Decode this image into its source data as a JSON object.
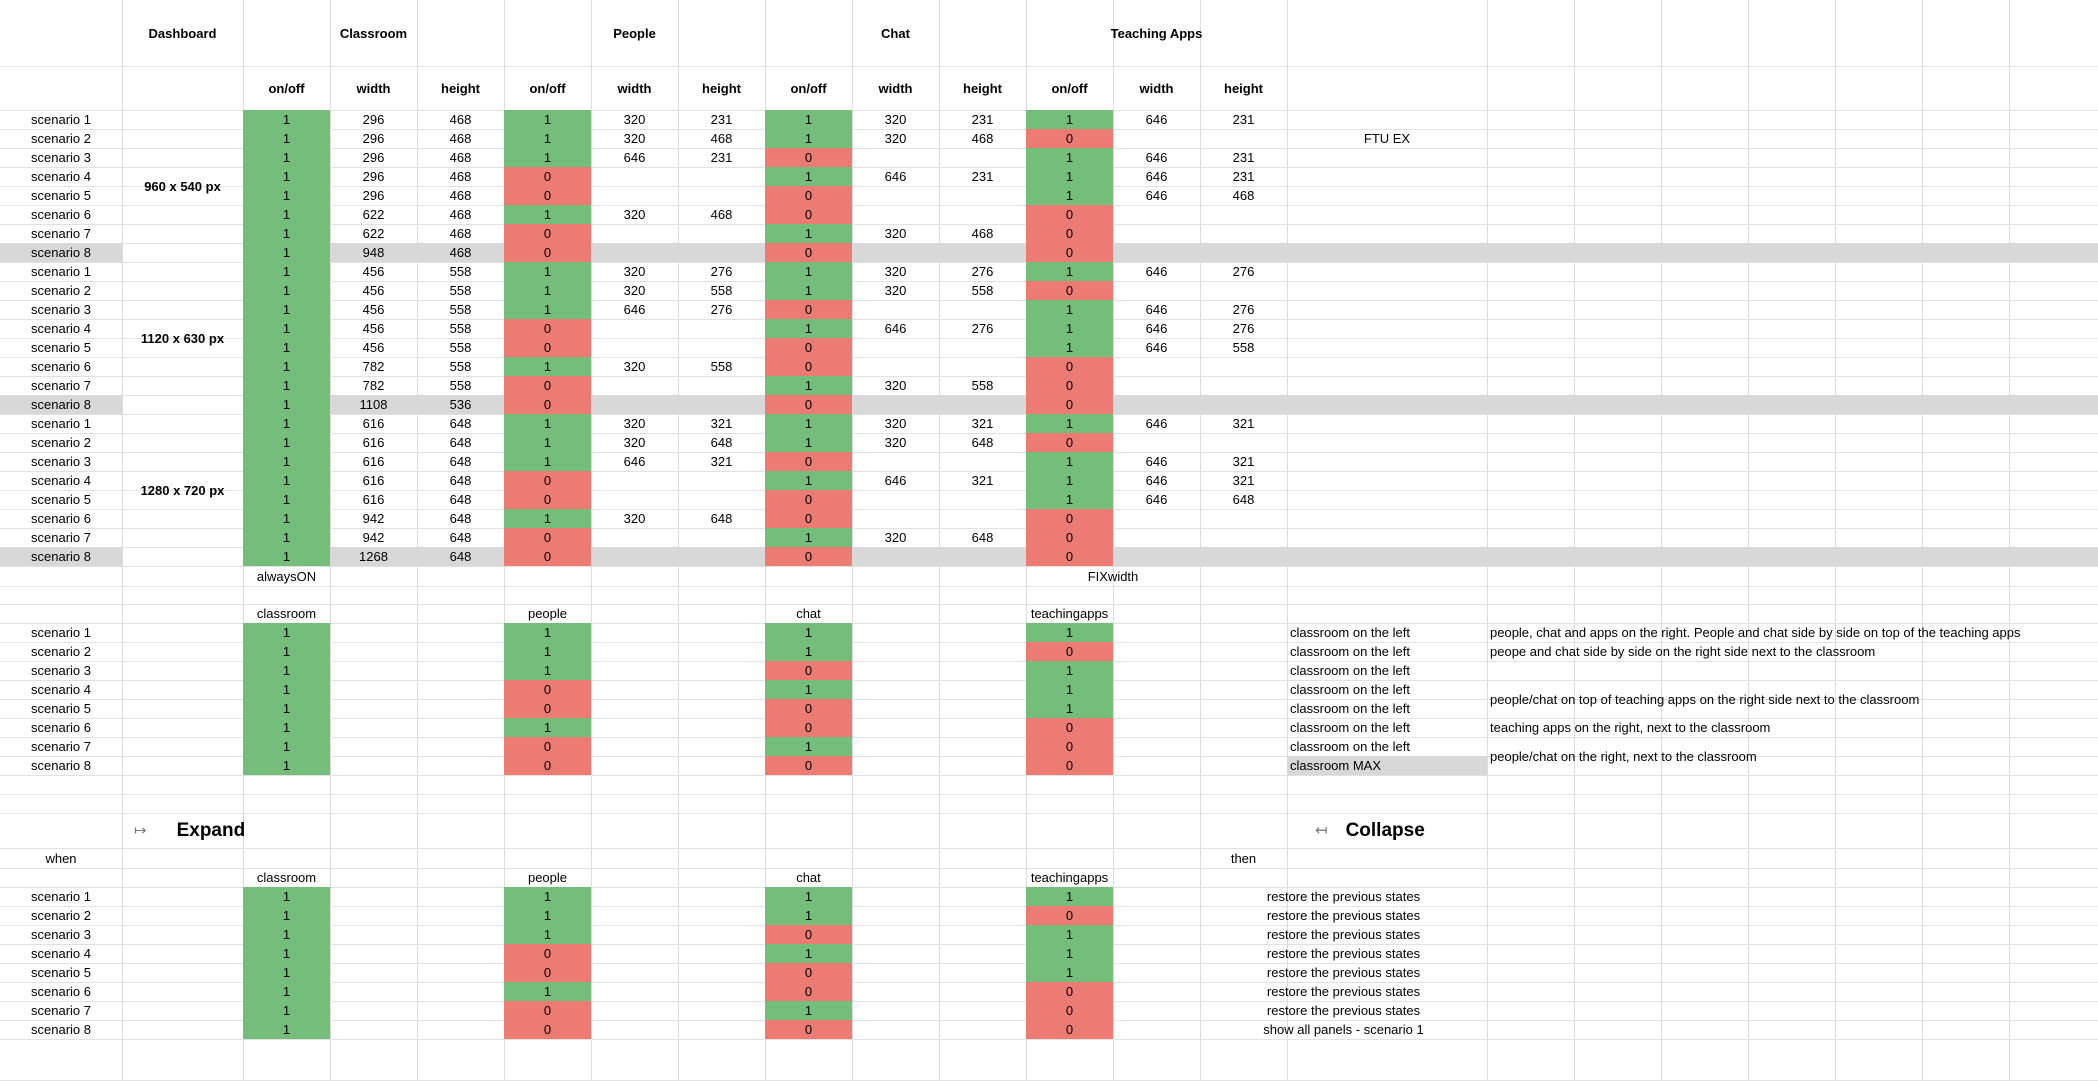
{
  "headers": {
    "dashboard": "Dashboard",
    "classroom": "Classroom",
    "people": "People",
    "chat": "Chat",
    "teaching_apps": "Teaching Apps",
    "onoff": "on/off",
    "width": "width",
    "height": "height"
  },
  "ftu_label": "FTU EX",
  "sizes": [
    {
      "label": "960 x 540 px",
      "rows": [
        {
          "name": "scenario 1",
          "cls": "1",
          "cw": "296",
          "ch": "468",
          "p": "1",
          "pw": "320",
          "ph": "231",
          "c": "1",
          "chw": "320",
          "chh": "231",
          "t": "1",
          "tw": "646",
          "th": "231"
        },
        {
          "name": "scenario 2",
          "cls": "1",
          "cw": "296",
          "ch": "468",
          "p": "1",
          "pw": "320",
          "ph": "468",
          "c": "1",
          "chw": "320",
          "chh": "468",
          "t": "0",
          "tw": "",
          "th": ""
        },
        {
          "name": "scenario 3",
          "cls": "1",
          "cw": "296",
          "ch": "468",
          "p": "1",
          "pw": "646",
          "ph": "231",
          "c": "0",
          "chw": "",
          "chh": "",
          "t": "1",
          "tw": "646",
          "th": "231"
        },
        {
          "name": "scenario 4",
          "cls": "1",
          "cw": "296",
          "ch": "468",
          "p": "0",
          "pw": "",
          "ph": "",
          "c": "1",
          "chw": "646",
          "chh": "231",
          "t": "1",
          "tw": "646",
          "th": "231"
        },
        {
          "name": "scenario 5",
          "cls": "1",
          "cw": "296",
          "ch": "468",
          "p": "0",
          "pw": "",
          "ph": "",
          "c": "0",
          "chw": "",
          "chh": "",
          "t": "1",
          "tw": "646",
          "th": "468"
        },
        {
          "name": "scenario 6",
          "cls": "1",
          "cw": "622",
          "ch": "468",
          "p": "1",
          "pw": "320",
          "ph": "468",
          "c": "0",
          "chw": "",
          "chh": "",
          "t": "0",
          "tw": "",
          "th": ""
        },
        {
          "name": "scenario 7",
          "cls": "1",
          "cw": "622",
          "ch": "468",
          "p": "0",
          "pw": "",
          "ph": "",
          "c": "1",
          "chw": "320",
          "chh": "468",
          "t": "0",
          "tw": "",
          "th": ""
        },
        {
          "name": "scenario 8",
          "cls": "1",
          "cw": "948",
          "ch": "468",
          "p": "0",
          "pw": "",
          "ph": "",
          "c": "0",
          "chw": "",
          "chh": "",
          "t": "0",
          "tw": "",
          "th": ""
        }
      ]
    },
    {
      "label": "1120 x 630 px",
      "rows": [
        {
          "name": "scenario 1",
          "cls": "1",
          "cw": "456",
          "ch": "558",
          "p": "1",
          "pw": "320",
          "ph": "276",
          "c": "1",
          "chw": "320",
          "chh": "276",
          "t": "1",
          "tw": "646",
          "th": "276"
        },
        {
          "name": "scenario 2",
          "cls": "1",
          "cw": "456",
          "ch": "558",
          "p": "1",
          "pw": "320",
          "ph": "558",
          "c": "1",
          "chw": "320",
          "chh": "558",
          "t": "0",
          "tw": "",
          "th": ""
        },
        {
          "name": "scenario 3",
          "cls": "1",
          "cw": "456",
          "ch": "558",
          "p": "1",
          "pw": "646",
          "ph": "276",
          "c": "0",
          "chw": "",
          "chh": "",
          "t": "1",
          "tw": "646",
          "th": "276"
        },
        {
          "name": "scenario 4",
          "cls": "1",
          "cw": "456",
          "ch": "558",
          "p": "0",
          "pw": "",
          "ph": "",
          "c": "1",
          "chw": "646",
          "chh": "276",
          "t": "1",
          "tw": "646",
          "th": "276"
        },
        {
          "name": "scenario 5",
          "cls": "1",
          "cw": "456",
          "ch": "558",
          "p": "0",
          "pw": "",
          "ph": "",
          "c": "0",
          "chw": "",
          "chh": "",
          "t": "1",
          "tw": "646",
          "th": "558"
        },
        {
          "name": "scenario 6",
          "cls": "1",
          "cw": "782",
          "ch": "558",
          "p": "1",
          "pw": "320",
          "ph": "558",
          "c": "0",
          "chw": "",
          "chh": "",
          "t": "0",
          "tw": "",
          "th": ""
        },
        {
          "name": "scenario 7",
          "cls": "1",
          "cw": "782",
          "ch": "558",
          "p": "0",
          "pw": "",
          "ph": "",
          "c": "1",
          "chw": "320",
          "chh": "558",
          "t": "0",
          "tw": "",
          "th": ""
        },
        {
          "name": "scenario 8",
          "cls": "1",
          "cw": "1108",
          "ch": "536",
          "p": "0",
          "pw": "",
          "ph": "",
          "c": "0",
          "chw": "",
          "chh": "",
          "t": "0",
          "tw": "",
          "th": ""
        }
      ]
    },
    {
      "label": "1280 x 720 px",
      "rows": [
        {
          "name": "scenario 1",
          "cls": "1",
          "cw": "616",
          "ch": "648",
          "p": "1",
          "pw": "320",
          "ph": "321",
          "c": "1",
          "chw": "320",
          "chh": "321",
          "t": "1",
          "tw": "646",
          "th": "321"
        },
        {
          "name": "scenario 2",
          "cls": "1",
          "cw": "616",
          "ch": "648",
          "p": "1",
          "pw": "320",
          "ph": "648",
          "c": "1",
          "chw": "320",
          "chh": "648",
          "t": "0",
          "tw": "",
          "th": ""
        },
        {
          "name": "scenario 3",
          "cls": "1",
          "cw": "616",
          "ch": "648",
          "p": "1",
          "pw": "646",
          "ph": "321",
          "c": "0",
          "chw": "",
          "chh": "",
          "t": "1",
          "tw": "646",
          "th": "321"
        },
        {
          "name": "scenario 4",
          "cls": "1",
          "cw": "616",
          "ch": "648",
          "p": "0",
          "pw": "",
          "ph": "",
          "c": "1",
          "chw": "646",
          "chh": "321",
          "t": "1",
          "tw": "646",
          "th": "321"
        },
        {
          "name": "scenario 5",
          "cls": "1",
          "cw": "616",
          "ch": "648",
          "p": "0",
          "pw": "",
          "ph": "",
          "c": "0",
          "chw": "",
          "chh": "",
          "t": "1",
          "tw": "646",
          "th": "648"
        },
        {
          "name": "scenario 6",
          "cls": "1",
          "cw": "942",
          "ch": "648",
          "p": "1",
          "pw": "320",
          "ph": "648",
          "c": "0",
          "chw": "",
          "chh": "",
          "t": "0",
          "tw": "",
          "th": ""
        },
        {
          "name": "scenario 7",
          "cls": "1",
          "cw": "942",
          "ch": "648",
          "p": "0",
          "pw": "",
          "ph": "",
          "c": "1",
          "chw": "320",
          "chh": "648",
          "t": "0",
          "tw": "",
          "th": ""
        },
        {
          "name": "scenario 8",
          "cls": "1",
          "cw": "1268",
          "ch": "648",
          "p": "0",
          "pw": "",
          "ph": "",
          "c": "0",
          "chw": "",
          "chh": "",
          "t": "0",
          "tw": "",
          "th": ""
        }
      ]
    }
  ],
  "notes": {
    "always_on": "alwaysON",
    "fix_width": "FIXwidth"
  },
  "summary": {
    "col_labels": {
      "classroom": "classroom",
      "people": "people",
      "chat": "chat",
      "teachingapps": "teachingapps"
    },
    "rows": [
      {
        "name": "scenario 1",
        "cls": "1",
        "p": "1",
        "c": "1",
        "t": "1",
        "desc": "classroom on the left"
      },
      {
        "name": "scenario 2",
        "cls": "1",
        "p": "1",
        "c": "1",
        "t": "0",
        "desc": "classroom on the left"
      },
      {
        "name": "scenario 3",
        "cls": "1",
        "p": "1",
        "c": "0",
        "t": "1",
        "desc": "classroom on the left"
      },
      {
        "name": "scenario 4",
        "cls": "1",
        "p": "0",
        "c": "1",
        "t": "1",
        "desc": "classroom on the left"
      },
      {
        "name": "scenario 5",
        "cls": "1",
        "p": "0",
        "c": "0",
        "t": "1",
        "desc": "classroom on the left"
      },
      {
        "name": "scenario 6",
        "cls": "1",
        "p": "1",
        "c": "0",
        "t": "0",
        "desc": "classroom on the left"
      },
      {
        "name": "scenario 7",
        "cls": "1",
        "p": "0",
        "c": "1",
        "t": "0",
        "desc": "classroom on the left"
      },
      {
        "name": "scenario 8",
        "cls": "1",
        "p": "0",
        "c": "0",
        "t": "0",
        "desc": "classroom MAX"
      }
    ],
    "right_notes": [
      "people, chat and apps on the right. People and chat side by side on top of the teaching apps",
      "peope and chat side by side on the right side next to the classroom",
      "people/chat on top of teaching apps on the right side next to the classroom",
      "teaching apps on the right, next to the classroom",
      "people/chat on the right, next to the classroom"
    ]
  },
  "expand_section": {
    "expand_icon": "↦",
    "expand_title": "Expand",
    "collapse_icon": "↤",
    "collapse_title": "Collapse",
    "when": "when",
    "then": "then",
    "col_labels": {
      "classroom": "classroom",
      "people": "people",
      "chat": "chat",
      "teachingapps": "teachingapps"
    },
    "rows": [
      {
        "name": "scenario 1",
        "cls": "1",
        "p": "1",
        "c": "1",
        "t": "1",
        "result": "restore the previous states"
      },
      {
        "name": "scenario 2",
        "cls": "1",
        "p": "1",
        "c": "1",
        "t": "0",
        "result": "restore the previous states"
      },
      {
        "name": "scenario 3",
        "cls": "1",
        "p": "1",
        "c": "0",
        "t": "1",
        "result": "restore the previous states"
      },
      {
        "name": "scenario 4",
        "cls": "1",
        "p": "0",
        "c": "1",
        "t": "1",
        "result": "restore the previous states"
      },
      {
        "name": "scenario 5",
        "cls": "1",
        "p": "0",
        "c": "0",
        "t": "1",
        "result": "restore the previous states"
      },
      {
        "name": "scenario 6",
        "cls": "1",
        "p": "1",
        "c": "0",
        "t": "0",
        "result": "restore the previous states"
      },
      {
        "name": "scenario 7",
        "cls": "1",
        "p": "0",
        "c": "1",
        "t": "0",
        "result": "restore the previous states"
      },
      {
        "name": "scenario 8",
        "cls": "1",
        "p": "0",
        "c": "0",
        "t": "0",
        "result": "show all panels - scenario 1"
      }
    ]
  },
  "colors": {
    "on": "#74bd7b",
    "off": "#ec7b74",
    "gray": "#d8d8d8",
    "grid": "#dcdcdc"
  }
}
